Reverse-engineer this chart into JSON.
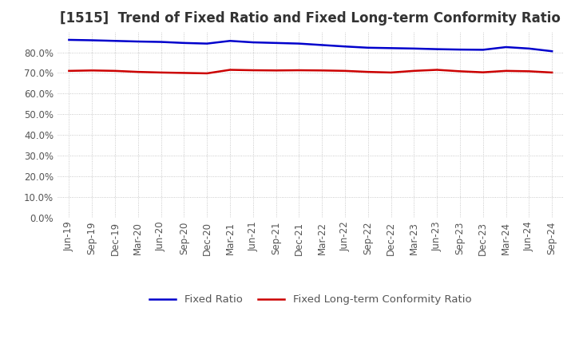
{
  "title": "[1515]  Trend of Fixed Ratio and Fixed Long-term Conformity Ratio",
  "x_labels": [
    "Jun-19",
    "Sep-19",
    "Dec-19",
    "Mar-20",
    "Jun-20",
    "Sep-20",
    "Dec-20",
    "Mar-21",
    "Jun-21",
    "Sep-21",
    "Dec-21",
    "Mar-22",
    "Jun-22",
    "Sep-22",
    "Dec-22",
    "Mar-23",
    "Jun-23",
    "Sep-23",
    "Dec-23",
    "Mar-24",
    "Jun-24",
    "Sep-24"
  ],
  "fixed_ratio": [
    86.0,
    85.8,
    85.5,
    85.2,
    85.0,
    84.5,
    84.2,
    85.5,
    84.8,
    84.5,
    84.2,
    83.5,
    82.8,
    82.2,
    82.0,
    81.8,
    81.5,
    81.3,
    81.2,
    82.5,
    81.8,
    80.5
  ],
  "fixed_lt_ratio": [
    71.0,
    71.2,
    71.0,
    70.5,
    70.2,
    70.0,
    69.8,
    71.5,
    71.3,
    71.2,
    71.3,
    71.2,
    71.0,
    70.5,
    70.2,
    71.0,
    71.5,
    70.8,
    70.3,
    71.0,
    70.8,
    70.2
  ],
  "fixed_ratio_color": "#0000cc",
  "fixed_lt_ratio_color": "#cc0000",
  "ylim": [
    0,
    90
  ],
  "yticks": [
    0,
    10,
    20,
    30,
    40,
    50,
    60,
    70,
    80
  ],
  "background_color": "#ffffff",
  "grid_color": "#bbbbbb",
  "legend_fixed_ratio": "Fixed Ratio",
  "legend_fixed_lt_ratio": "Fixed Long-term Conformity Ratio",
  "title_fontsize": 12,
  "axis_fontsize": 8.5,
  "legend_fontsize": 9.5,
  "title_color": "#333333",
  "tick_color": "#555555"
}
